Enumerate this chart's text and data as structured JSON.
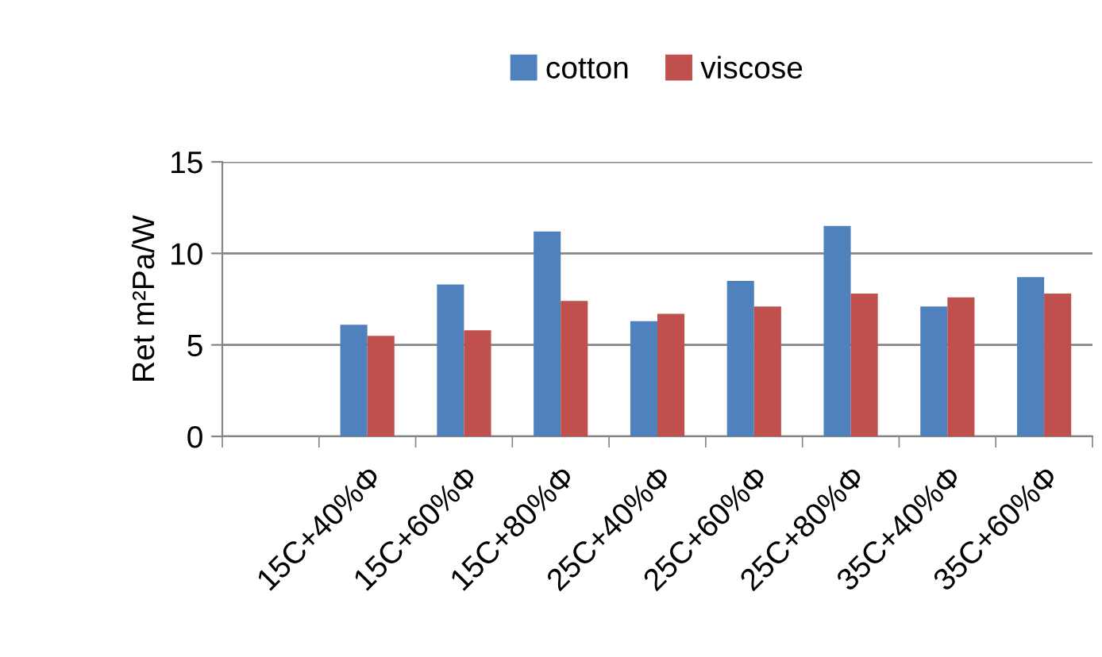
{
  "chart_data": {
    "type": "bar",
    "ylabel": "Ret m²Pa/W",
    "categories": [
      null,
      "15C+40%Φ",
      "15C+60%Φ",
      "15C+80%Φ",
      "25C+40%Φ",
      "25C+60%Φ",
      "25C+80%Φ",
      "35C+40%Φ",
      "35C+60%Φ"
    ],
    "series": [
      {
        "name": "cotton",
        "color": "#4f81bd",
        "values": [
          null,
          6.1,
          8.3,
          11.2,
          6.3,
          8.5,
          11.5,
          7.1,
          8.7
        ]
      },
      {
        "name": "viscose",
        "color": "#c0504d",
        "values": [
          null,
          5.5,
          5.8,
          7.4,
          6.7,
          7.1,
          7.8,
          7.6,
          7.8
        ]
      }
    ],
    "ylim": [
      0,
      15
    ],
    "yticks": [
      0,
      5,
      10,
      15
    ],
    "grid": "y",
    "legend": "top"
  }
}
